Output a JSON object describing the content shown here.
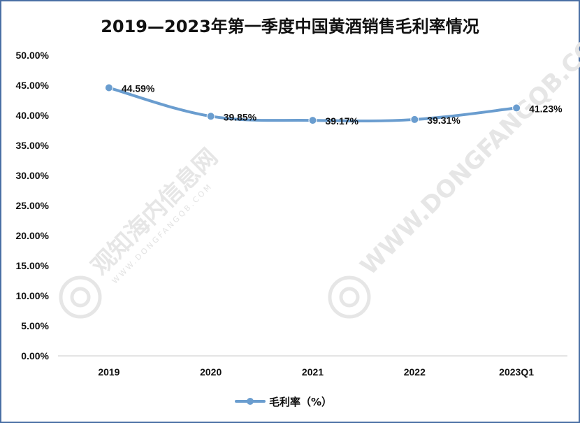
{
  "chart_data": {
    "type": "line",
    "title": "2019—2023年第一季度中国黄酒销售毛利率情况",
    "categories": [
      "2019",
      "2020",
      "2021",
      "2022",
      "2023Q1"
    ],
    "series": [
      {
        "name": "毛利率（%）",
        "values": [
          44.59,
          39.85,
          39.17,
          39.31,
          41.23
        ],
        "labels": [
          "44.59%",
          "39.85%",
          "39.17%",
          "39.31%",
          "41.23%"
        ]
      }
    ],
    "yticks": [
      "0.00%",
      "5.00%",
      "10.00%",
      "15.00%",
      "20.00%",
      "25.00%",
      "30.00%",
      "35.00%",
      "40.00%",
      "45.00%",
      "50.00%"
    ],
    "ylim": [
      0,
      50
    ],
    "grid": false,
    "legend_position": "bottom",
    "series_color": "#6a9dcf"
  },
  "watermark": {
    "text": "观知海内信息网",
    "sub": "WWW.DONGFANGQB.COM"
  }
}
